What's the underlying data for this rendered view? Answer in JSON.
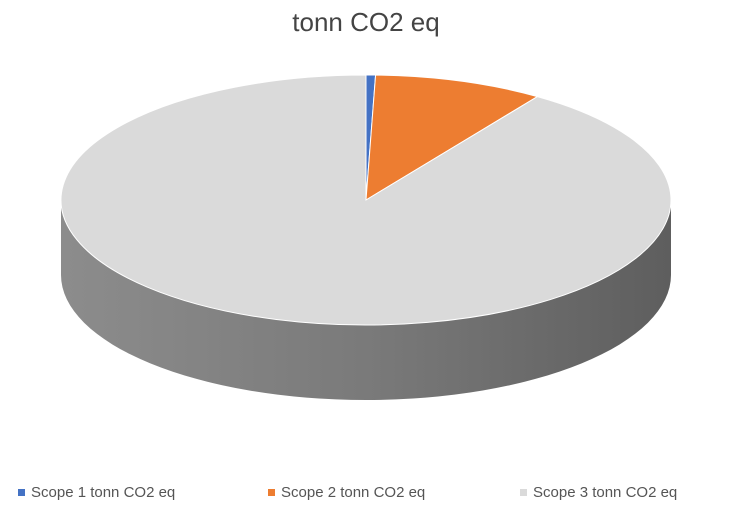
{
  "chart_data": {
    "type": "pie",
    "title": "tonn CO2 eq",
    "categories": [
      "Scope 1 tonn CO2 eq",
      "Scope 2 tonn CO2 eq",
      "Scope 3 tonn CO2 eq"
    ],
    "values": [
      0.5,
      9,
      90.5
    ],
    "colors": [
      "#4472c4",
      "#ed7d31",
      "#dadada"
    ],
    "legend": "bottom"
  }
}
